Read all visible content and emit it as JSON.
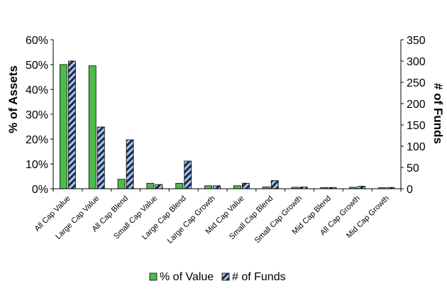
{
  "chart_data": {
    "type": "bar",
    "categories": [
      "All Cap Value",
      "Large Cap Value",
      "All Cap Blend",
      "Small Cap Value",
      "Large Cap Blend",
      "Large Cap Growth",
      "Mid Cap Value",
      "Small Cap Blend",
      "Small Cap Growth",
      "Mid Cap Blend",
      "All Cap Growth",
      "Mid Cap Growth"
    ],
    "series": [
      {
        "name": "% of Value",
        "axis": "left",
        "values": [
          50,
          49.5,
          3.8,
          2.2,
          2.2,
          1.2,
          1.2,
          0.7,
          0.6,
          0.5,
          0.6,
          0.4
        ],
        "color": "#4cbb4c"
      },
      {
        "name": "# of Funds",
        "axis": "right",
        "values": [
          300,
          145,
          115,
          10,
          65,
          7,
          13,
          19,
          4,
          3,
          6,
          3
        ],
        "pattern": "navy-lightblue-diagonal-stripes"
      }
    ],
    "ylabel_left": "% of Assets",
    "ylabel_right": "# of Funds",
    "ylim_left": [
      0,
      60
    ],
    "yticks_left": [
      "0%",
      "10%",
      "20%",
      "30%",
      "40%",
      "50%",
      "60%"
    ],
    "ylim_right": [
      0,
      350
    ],
    "yticks_right": [
      "0",
      "50",
      "100",
      "150",
      "200",
      "250",
      "300",
      "350"
    ],
    "grid": false,
    "legend_position": "bottom-center",
    "title": ""
  },
  "colors": {
    "value_green": "#4cbb4c",
    "stripe_dark": "#1c2a4a",
    "stripe_light": "#a9c4ea"
  }
}
